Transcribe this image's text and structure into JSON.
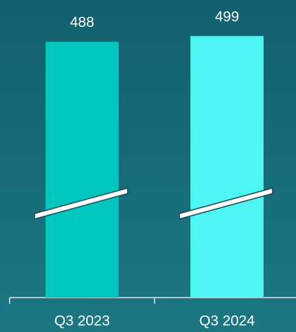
{
  "chart_data": {
    "type": "bar",
    "categories": [
      "Q3 2023",
      "Q3 2024"
    ],
    "values": [
      488,
      499
    ],
    "colors": [
      "#00c7bd",
      "#4ff5f2"
    ],
    "ylim": [
      0,
      550
    ],
    "axis_break": true
  }
}
